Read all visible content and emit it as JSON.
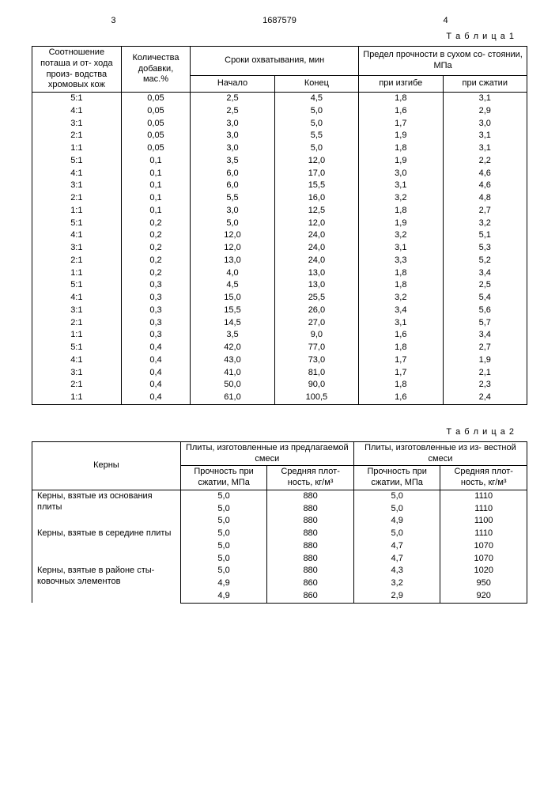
{
  "doc_number": "1687579",
  "page_left": "3",
  "page_right": "4",
  "table1": {
    "label": "Т а б л и ц а 1",
    "headers": {
      "ratio": "Соотношение поташа и от- хода произ- водства хромовых кож",
      "amount": "Количества добавки, мас.%",
      "settime": "Сроки охватывания, мин",
      "start": "Начало",
      "end": "Конец",
      "strength": "Предел прочности в сухом со- стоянии, МПа",
      "bend": "при изгибе",
      "comp": "при сжатии"
    },
    "rows": [
      [
        "5:1",
        "0,05",
        "2,5",
        "4,5",
        "1,8",
        "3,1"
      ],
      [
        "4:1",
        "0,05",
        "2,5",
        "5,0",
        "1,6",
        "2,9"
      ],
      [
        "3:1",
        "0,05",
        "3,0",
        "5,0",
        "1,7",
        "3,0"
      ],
      [
        "2:1",
        "0,05",
        "3,0",
        "5,5",
        "1,9",
        "3,1"
      ],
      [
        "1:1",
        "0,05",
        "3,0",
        "5,0",
        "1,8",
        "3,1"
      ],
      [
        "5:1",
        "0,1",
        "3,5",
        "12,0",
        "1,9",
        "2,2"
      ],
      [
        "4:1",
        "0,1",
        "6,0",
        "17,0",
        "3,0",
        "4,6"
      ],
      [
        "3:1",
        "0,1",
        "6,0",
        "15,5",
        "3,1",
        "4,6"
      ],
      [
        "2:1",
        "0,1",
        "5,5",
        "16,0",
        "3,2",
        "4,8"
      ],
      [
        "1:1",
        "0,1",
        "3,0",
        "12,5",
        "1,8",
        "2,7"
      ],
      [
        "5:1",
        "0,2",
        "5,0",
        "12,0",
        "1,9",
        "3,2"
      ],
      [
        "4:1",
        "0,2",
        "12,0",
        "24,0",
        "3,2",
        "5,1"
      ],
      [
        "3:1",
        "0,2",
        "12,0",
        "24,0",
        "3,1",
        "5,3"
      ],
      [
        "2:1",
        "0,2",
        "13,0",
        "24,0",
        "3,3",
        "5,2"
      ],
      [
        "1:1",
        "0,2",
        "4,0",
        "13,0",
        "1,8",
        "3,4"
      ],
      [
        "5:1",
        "0,3",
        "4,5",
        "13,0",
        "1,8",
        "2,5"
      ],
      [
        "4:1",
        "0,3",
        "15,0",
        "25,5",
        "3,2",
        "5,4"
      ],
      [
        "3:1",
        "0,3",
        "15,5",
        "26,0",
        "3,4",
        "5,6"
      ],
      [
        "2:1",
        "0,3",
        "14,5",
        "27,0",
        "3,1",
        "5,7"
      ],
      [
        "1:1",
        "0,3",
        "3,5",
        "9,0",
        "1,6",
        "3,4"
      ],
      [
        "5:1",
        "0,4",
        "42,0",
        "77,0",
        "1,8",
        "2,7"
      ],
      [
        "4:1",
        "0,4",
        "43,0",
        "73,0",
        "1,7",
        "1,9"
      ],
      [
        "3:1",
        "0,4",
        "41,0",
        "81,0",
        "1,7",
        "2,1"
      ],
      [
        "2:1",
        "0,4",
        "50,0",
        "90,0",
        "1,8",
        "2,3"
      ],
      [
        "1:1",
        "0,4",
        "61,0",
        "100,5",
        "1,6",
        "2,4"
      ]
    ]
  },
  "table2": {
    "label": "Т а б л и ц а 2",
    "headers": {
      "kerns": "Керны",
      "proposed": "Плиты, изготовленные из предлагаемой смеси",
      "known": "Плиты, изготовленные из из- вестной смеси",
      "strength": "Прочность при сжатии, МПа",
      "density": "Средняя плот- ность, кг/м³"
    },
    "sections": [
      {
        "label": "Керны, взятые из основания плиты",
        "rows": [
          [
            "5,0",
            "880",
            "5,0",
            "1110"
          ],
          [
            "5,0",
            "880",
            "5,0",
            "1110"
          ],
          [
            "5,0",
            "880",
            "4,9",
            "1100"
          ]
        ]
      },
      {
        "label": "Керны, взятые в середине плиты",
        "rows": [
          [
            "5,0",
            "880",
            "5,0",
            "1110"
          ],
          [
            "5,0",
            "880",
            "4,7",
            "1070"
          ],
          [
            "5,0",
            "880",
            "4,7",
            "1070"
          ]
        ]
      },
      {
        "label": "Керны, взятые в районе сты- ковочных элементов",
        "rows": [
          [
            "5,0",
            "880",
            "4,3",
            "1020"
          ],
          [
            "4,9",
            "860",
            "3,2",
            "950"
          ],
          [
            "4,9",
            "860",
            "2,9",
            "920"
          ]
        ]
      }
    ]
  }
}
